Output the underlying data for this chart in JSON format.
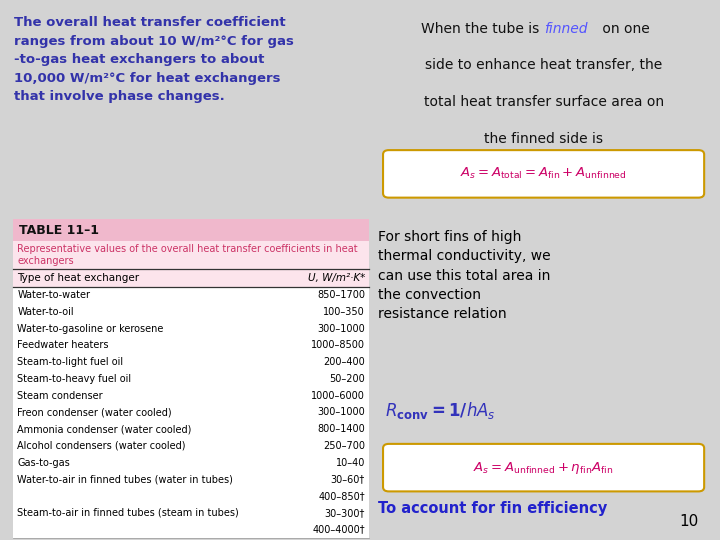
{
  "bg_color": "#d3d3d3",
  "title_text_left": "The overall heat transfer coefficient\nranges from about 10 W/m²°C for gas\n-to-gas heat exchangers to about\n10,000 W/m²°C for heat exchangers\nthat involve phase changes.",
  "title_color_left": "#3333aa",
  "finned_color": "#6666ff",
  "table_title": "TABLE 11–1",
  "table_subtitle": "Representative values of the overall heat transfer coefficients in heat\nexchangers",
  "table_col1": "Type of heat exchanger",
  "table_col2": "U, W/m²·K*",
  "table_rows": [
    [
      "Water-to-water",
      "850–1700"
    ],
    [
      "Water-to-oil",
      "100–350"
    ],
    [
      "Water-to-gasoline or kerosene",
      "300–1000"
    ],
    [
      "Feedwater heaters",
      "1000–8500"
    ],
    [
      "Steam-to-light fuel oil",
      "200–400"
    ],
    [
      "Steam-to-heavy fuel oil",
      "50–200"
    ],
    [
      "Steam condenser",
      "1000–6000"
    ],
    [
      "Freon condenser (water cooled)",
      "300–1000"
    ],
    [
      "Ammonia condenser (water cooled)",
      "800–1400"
    ],
    [
      "Alcohol condensers (water cooled)",
      "250–700"
    ],
    [
      "Gas-to-gas",
      "10–40"
    ],
    [
      "Water-to-air in finned tubes (water in tubes)",
      "30–60†"
    ],
    [
      "",
      "400–850†"
    ],
    [
      "Steam-to-air in finned tubes (steam in tubes)",
      "30–300†"
    ],
    [
      "",
      "400–4000†"
    ]
  ],
  "right_para_text": "For short fins of high\nthermal conductivity, we\ncan use this total area in\nthe convection\nresistance relation",
  "fin_eff_text": "To account for fin efficiency",
  "page_num": "10",
  "table_header_bg": "#f0b8cc",
  "table_subtitle_color": "#cc3366",
  "table_body_bg": "#ffffff",
  "eq_box_border": "#cc9900",
  "eq2_box_border": "#cc9900"
}
